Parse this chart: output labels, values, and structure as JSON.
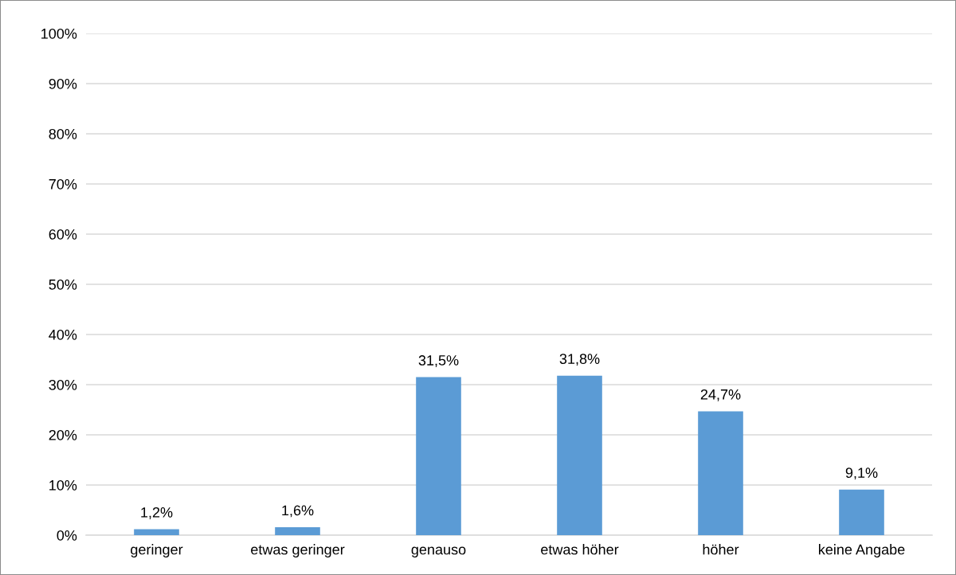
{
  "chart_data": {
    "type": "bar",
    "categories": [
      "geringer",
      "etwas geringer",
      "genauso",
      "etwas höher",
      "höher",
      "keine Angabe"
    ],
    "values": [
      1.2,
      1.6,
      31.5,
      31.8,
      24.7,
      9.1
    ],
    "value_labels": [
      "1,2%",
      "1,6%",
      "31,5%",
      "31,8%",
      "24,7%",
      "9,1%"
    ],
    "color": "#5b9bd5",
    "ylim": [
      0,
      100
    ],
    "yticks": [
      {
        "value": 0,
        "label": "0%"
      },
      {
        "value": 10,
        "label": "10%"
      },
      {
        "value": 20,
        "label": "20%"
      },
      {
        "value": 30,
        "label": "30%"
      },
      {
        "value": 40,
        "label": "40%"
      },
      {
        "value": 50,
        "label": "50%"
      },
      {
        "value": 60,
        "label": "60%"
      },
      {
        "value": 70,
        "label": "70%"
      },
      {
        "value": 80,
        "label": "80%"
      },
      {
        "value": 90,
        "label": "90%"
      },
      {
        "value": 100,
        "label": "100%"
      }
    ],
    "grid": "y",
    "legend": false
  }
}
